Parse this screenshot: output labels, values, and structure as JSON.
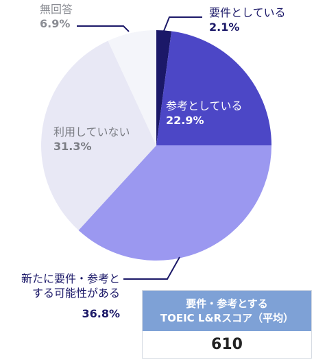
{
  "chart_data": {
    "type": "pie",
    "slices": [
      {
        "label": "要件としている",
        "percent": 2.1,
        "value_text": "2.1%",
        "color": "#1b1868"
      },
      {
        "label": "参考としている",
        "percent": 22.9,
        "value_text": "22.9%",
        "color": "#4c47c6"
      },
      {
        "label": "新たに要件・参考とする可能性がある",
        "percent": 36.8,
        "value_text": "36.8%",
        "color": "#9b98f0"
      },
      {
        "label": "利用していない",
        "percent": 31.3,
        "value_text": "31.3%",
        "color": "#e8e8f5"
      },
      {
        "label": "無回答",
        "percent": 6.9,
        "value_text": "6.9%",
        "color": "#f4f5fa"
      }
    ],
    "start_angle": "12 o'clock",
    "direction": "clockwise"
  },
  "labels": {
    "required": {
      "name": "要件としている",
      "pct": "2.1%"
    },
    "reference": {
      "name": "参考としている",
      "pct": "22.9%"
    },
    "possible": {
      "name_line1": "新たに要件・参考と",
      "name_line2": "する可能性がある",
      "pct": "36.8%"
    },
    "not_used": {
      "name": "利用していない",
      "pct": "31.3%"
    },
    "no_answer": {
      "name": "無回答",
      "pct": "6.9%"
    }
  },
  "score_box": {
    "title_line1": "要件・参考とする",
    "title_line2": "TOEIC L&Rスコア（平均）",
    "value": "610"
  }
}
